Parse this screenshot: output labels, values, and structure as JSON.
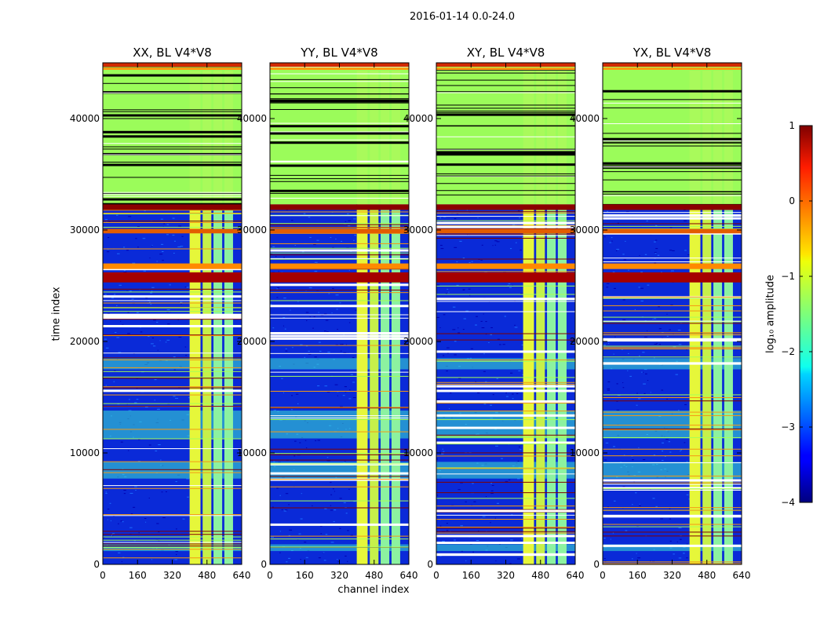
{
  "figure_title": "2016-01-14 0.0-24.0",
  "chart_data": {
    "type": "heatmap",
    "title": "2016-01-14 0.0-24.0",
    "xlabel": "channel index",
    "ylabel": "time index",
    "xlim": [
      0,
      640
    ],
    "ylim": [
      0,
      45000
    ],
    "x_ticks": [
      "0",
      "160",
      "320",
      "480",
      "640"
    ],
    "y_ticks": [
      "0",
      "10000",
      "20000",
      "30000",
      "40000"
    ],
    "x_tick_values": [
      0,
      160,
      320,
      480,
      640
    ],
    "y_tick_values": [
      0,
      10000,
      20000,
      30000,
      40000
    ],
    "panels": [
      {
        "title": "XX, BL V4*V8",
        "pol": "XX"
      },
      {
        "title": "YY, BL V4*V8",
        "pol": "YY"
      },
      {
        "title": "XY, BL V4*V8",
        "pol": "XY"
      },
      {
        "title": "YX, BL V4*V8",
        "pol": "YX"
      }
    ],
    "colorbar": {
      "label": "log₁₀ amplitude",
      "range": [
        -4,
        1
      ],
      "ticks": [
        "−4",
        "−3",
        "−2",
        "−1",
        "0",
        "1"
      ],
      "tick_values": [
        -4,
        -3,
        -2,
        -1,
        0,
        1
      ],
      "colormap": "jet"
    },
    "regions": {
      "flat_top_rows_from": 32300,
      "rfi_channels": [
        [
          400,
          450
        ],
        [
          460,
          500
        ],
        [
          510,
          550
        ],
        [
          560,
          600
        ]
      ]
    }
  }
}
